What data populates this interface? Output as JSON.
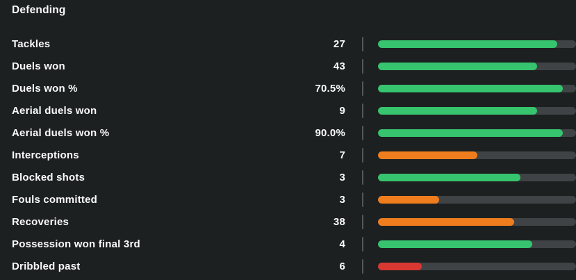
{
  "panel": {
    "title": "Defending"
  },
  "colors": {
    "background": "#1d2021",
    "text": "#fafafa",
    "track": "#404345",
    "tick": "#55585a",
    "green": "#36c46e",
    "orange": "#ef7d1e",
    "red": "#d93732"
  },
  "chart_data": {
    "type": "bar",
    "orientation": "horizontal",
    "title": "Defending",
    "categories": [
      "Tackles",
      "Duels won",
      "Duels won %",
      "Aerial duels won",
      "Aerial duels won %",
      "Interceptions",
      "Blocked shots",
      "Fouls committed",
      "Recoveries",
      "Possession won final 3rd",
      "Dribbled past"
    ],
    "values": [
      "27",
      "43",
      "70.5%",
      "9",
      "90.0%",
      "7",
      "3",
      "3",
      "38",
      "4",
      "6"
    ],
    "bar_fill_percents": [
      90.5,
      80.4,
      93.3,
      80.4,
      93.3,
      50.2,
      71.9,
      30.9,
      68.8,
      77.9,
      22.1
    ],
    "bar_colors": [
      "green",
      "green",
      "green",
      "green",
      "green",
      "orange",
      "green",
      "orange",
      "orange",
      "green",
      "red"
    ],
    "xlim": [
      0,
      100
    ],
    "grid": false,
    "legend": false
  }
}
